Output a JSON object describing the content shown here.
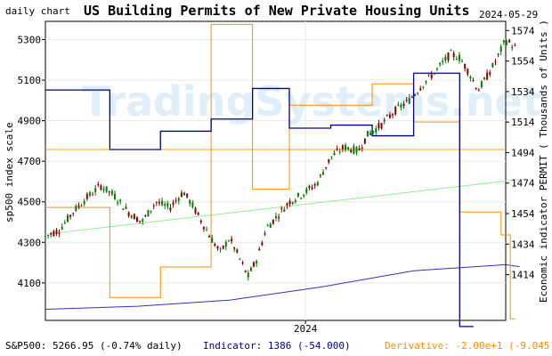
{
  "header": {
    "left": "daily chart",
    "title": "US Building Permits of New Private Housing Units",
    "date": "2024-05-29"
  },
  "watermark": "TradingSystems.net",
  "footer": {
    "sp500": "S&P500: 5266.95 (-0.74% daily)",
    "indicator": "Indicator: 1386 (-54.000)",
    "derivative": "Derivative: -2.00e+1 (-9.045)"
  },
  "colors": {
    "candle_up": "#008000",
    "candle_down": "#8b0000",
    "permit_line": "#00008b",
    "derivative_line": "#ff8c00",
    "trend_line": "#90ee90",
    "slow_line": "#3030cc",
    "hline": "#ffa500",
    "grid": "#e8e8e8",
    "watermark": "#dfeefb"
  },
  "chart_data": {
    "type": "line",
    "title": "US Building Permits of New Private Housing Units",
    "xlabel": "",
    "x_tick_labels": [
      "2024"
    ],
    "left_axis": {
      "label": "sp500 index scale",
      "ticks": [
        4100,
        4300,
        4500,
        4700,
        4900,
        5100,
        5300
      ],
      "range": [
        3915,
        5390
      ]
    },
    "right_axis": {
      "label": "Economic indicator PERMIT ( Thousands of Units )",
      "ticks": [
        1414,
        1434,
        1454,
        1474,
        1494,
        1514,
        1534,
        1554,
        1574
      ],
      "range": [
        1384,
        1580
      ]
    },
    "sp500": {
      "name": "S&P500",
      "trend": [
        [
          0,
          4330
        ],
        [
          0.03,
          4360
        ],
        [
          0.06,
          4450
        ],
        [
          0.09,
          4520
        ],
        [
          0.12,
          4580
        ],
        [
          0.15,
          4530
        ],
        [
          0.18,
          4450
        ],
        [
          0.21,
          4400
        ],
        [
          0.24,
          4500
        ],
        [
          0.27,
          4470
        ],
        [
          0.3,
          4550
        ],
        [
          0.32,
          4480
        ],
        [
          0.34,
          4400
        ],
        [
          0.36,
          4320
        ],
        [
          0.38,
          4250
        ],
        [
          0.4,
          4320
        ],
        [
          0.42,
          4230
        ],
        [
          0.44,
          4130
        ],
        [
          0.46,
          4220
        ],
        [
          0.48,
          4370
        ],
        [
          0.5,
          4420
        ],
        [
          0.53,
          4500
        ],
        [
          0.56,
          4540
        ],
        [
          0.59,
          4590
        ],
        [
          0.62,
          4720
        ],
        [
          0.65,
          4770
        ],
        [
          0.68,
          4750
        ],
        [
          0.7,
          4830
        ],
        [
          0.73,
          4880
        ],
        [
          0.76,
          4950
        ],
        [
          0.79,
          5000
        ],
        [
          0.82,
          5080
        ],
        [
          0.85,
          5150
        ],
        [
          0.88,
          5230
        ],
        [
          0.9,
          5210
        ],
        [
          0.92,
          5140
        ],
        [
          0.94,
          5050
        ],
        [
          0.96,
          5120
        ],
        [
          0.98,
          5200
        ],
        [
          1.0,
          5300
        ],
        [
          1.02,
          5260
        ]
      ]
    },
    "permit": {
      "name": "PERMIT",
      "steps": [
        [
          0,
          1535
        ],
        [
          0.14,
          1496
        ],
        [
          0.25,
          1508
        ],
        [
          0.36,
          1516
        ],
        [
          0.45,
          1536
        ],
        [
          0.53,
          1510
        ],
        [
          0.62,
          1512
        ],
        [
          0.71,
          1505
        ],
        [
          0.8,
          1546
        ],
        [
          0.9,
          1380
        ]
      ]
    },
    "derivative": {
      "name": "Derivative",
      "steps": [
        [
          0,
          1458
        ],
        [
          0.14,
          1399
        ],
        [
          0.25,
          1419
        ],
        [
          0.36,
          1578
        ],
        [
          0.45,
          1470
        ],
        [
          0.53,
          1525
        ],
        [
          0.62,
          1525
        ],
        [
          0.71,
          1539
        ],
        [
          0.8,
          1514
        ],
        [
          0.9,
          1455
        ],
        [
          0.99,
          1440
        ],
        [
          1.01,
          1385
        ]
      ]
    },
    "derivative_zero": 1496,
    "trendline": [
      [
        0,
        4340
      ],
      [
        1.03,
        4610
      ]
    ],
    "slow_line": [
      [
        0,
        3970
      ],
      [
        0.2,
        3985
      ],
      [
        0.4,
        4015
      ],
      [
        0.6,
        4080
      ],
      [
        0.8,
        4160
      ],
      [
        1.0,
        4190
      ],
      [
        1.03,
        4180
      ]
    ],
    "grid": true,
    "legend": "none"
  }
}
